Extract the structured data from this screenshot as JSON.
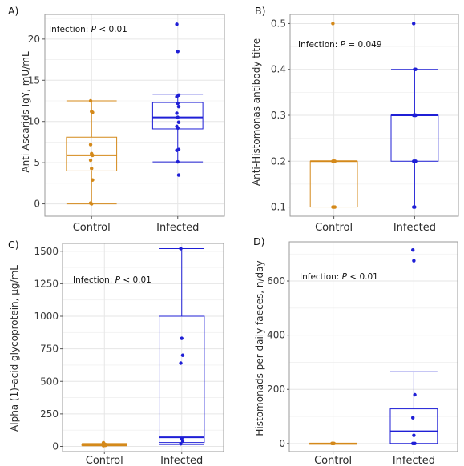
{
  "colors": {
    "control": "#d4891a",
    "infected": "#1f1fd6",
    "grid": "#e6e6e6",
    "frame": "#9a9a9a"
  },
  "chart_data": [
    {
      "type": "box",
      "panel_label": "A)",
      "ylabel": "Anti-Ascarids IgY, mU/mL",
      "categories": [
        "Control",
        "Infected"
      ],
      "ylim": [
        -1.5,
        23
      ],
      "yticks": [
        0,
        5,
        10,
        15,
        20
      ],
      "annotation": {
        "prefix": "Infection:",
        "value": "P < 0.01"
      },
      "boxes": [
        {
          "name": "Control",
          "whisker_low": 0,
          "q1": 4.0,
          "median": 5.9,
          "q3": 8.1,
          "whisker_high": 12.5,
          "points": [
            12.5,
            11.2,
            11.1,
            7.2,
            6.1,
            5.9,
            5.3,
            4.3,
            2.9,
            0.1,
            0.0
          ]
        },
        {
          "name": "Infected",
          "whisker_low": 5.1,
          "q1": 9.1,
          "median": 10.5,
          "q3": 12.3,
          "whisker_high": 13.3,
          "points": [
            21.8,
            18.5,
            13.2,
            13.0,
            12.2,
            11.8,
            11.0,
            10.5,
            9.9,
            9.4,
            9.2,
            6.6,
            6.5,
            5.1,
            3.5
          ]
        }
      ]
    },
    {
      "type": "box",
      "panel_label": "B)",
      "ylabel": "Anti-Histomonas antibody titre",
      "categories": [
        "Control",
        "Infected"
      ],
      "ylim": [
        0.08,
        0.52
      ],
      "yticks": [
        0.1,
        0.2,
        0.3,
        0.4,
        0.5
      ],
      "annotation": {
        "prefix": "Infection:",
        "value": "P = 0.049"
      },
      "boxes": [
        {
          "name": "Control",
          "whisker_low": 0.1,
          "q1": 0.1,
          "median": 0.2,
          "q3": 0.2,
          "whisker_high": 0.2,
          "points": [
            0.5,
            0.2,
            0.2,
            0.2,
            0.2,
            0.1,
            0.1,
            0.1
          ]
        },
        {
          "name": "Infected",
          "whisker_low": 0.1,
          "q1": 0.2,
          "median": 0.3,
          "q3": 0.3,
          "whisker_high": 0.4,
          "points": [
            0.5,
            0.4,
            0.4,
            0.3,
            0.3,
            0.3,
            0.3,
            0.3,
            0.3,
            0.2,
            0.2,
            0.2,
            0.1,
            0.1
          ]
        }
      ]
    },
    {
      "type": "box",
      "panel_label": "C)",
      "ylabel": "Alpha (1)-acid glycoprotein, µg/mL",
      "categories": [
        "Control",
        "Infected"
      ],
      "ylim": [
        -40,
        1560
      ],
      "yticks": [
        0,
        250,
        500,
        750,
        1000,
        1250,
        1500
      ],
      "annotation": {
        "prefix": "Infection:",
        "value": "P < 0.01"
      },
      "boxes": [
        {
          "name": "Control",
          "whisker_low": 5,
          "q1": 8,
          "median": 12,
          "q3": 16,
          "whisker_high": 22,
          "points": [
            28,
            18,
            15,
            12,
            10,
            8,
            6
          ]
        },
        {
          "name": "Infected",
          "whisker_low": 15,
          "q1": 30,
          "median": 70,
          "q3": 1000,
          "whisker_high": 1520,
          "points": [
            1520,
            830,
            700,
            640,
            60,
            40,
            20
          ]
        }
      ]
    },
    {
      "type": "box",
      "panel_label": "D)",
      "ylabel": "Histomonads per  daily faeces, n/day",
      "categories": [
        "Control",
        "Infected"
      ],
      "ylim": [
        -30,
        745
      ],
      "yticks": [
        0,
        200,
        400,
        600
      ],
      "annotation": {
        "prefix": "Infection:",
        "value": "P < 0.01"
      },
      "boxes": [
        {
          "name": "Control",
          "whisker_low": 0,
          "q1": 0,
          "median": 0,
          "q3": 0,
          "whisker_high": 0,
          "points": [
            0,
            0,
            0,
            0,
            0
          ]
        },
        {
          "name": "Infected",
          "whisker_low": 0,
          "q1": 0,
          "median": 45,
          "q3": 128,
          "whisker_high": 265,
          "points": [
            715,
            675,
            180,
            95,
            30,
            0,
            0
          ]
        }
      ]
    }
  ]
}
